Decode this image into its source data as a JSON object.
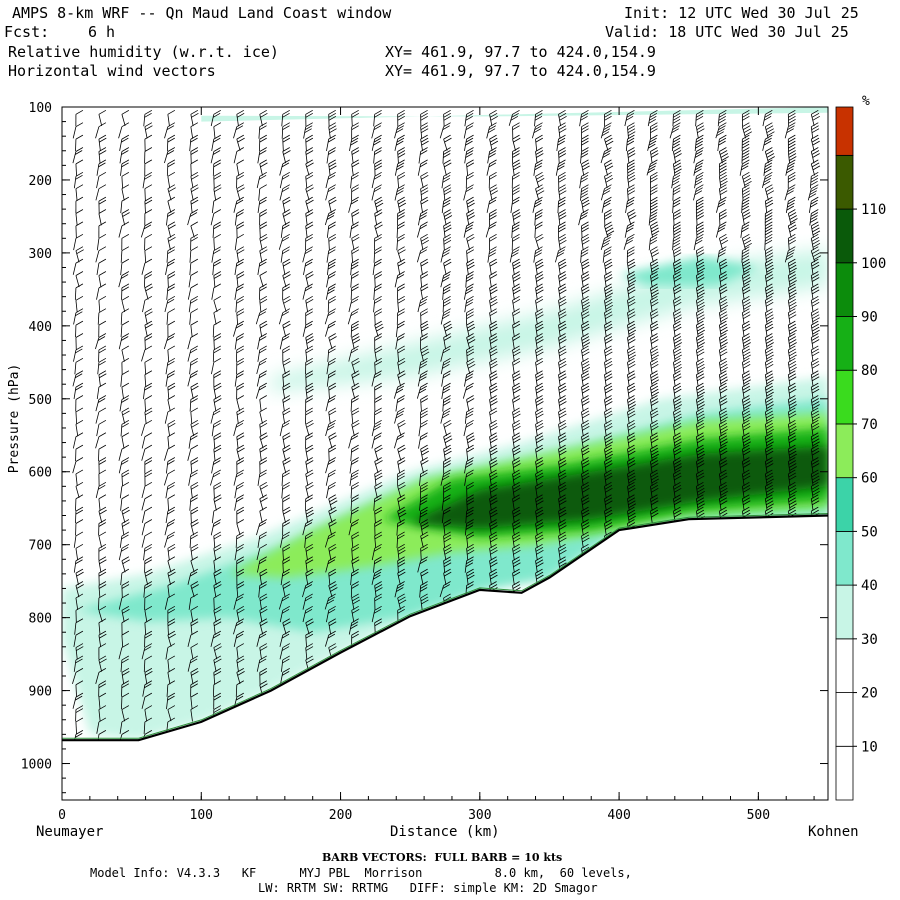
{
  "header": {
    "title": "AMPS 8-km WRF -- Qn Maud Land Coast window",
    "fcst_label": "Fcst:",
    "fcst_value": "6 h",
    "init": "Init: 12 UTC Wed 30 Jul 25",
    "valid": "Valid: 18 UTC Wed 30 Jul 25",
    "field1": "Relative humidity (w.r.t. ice)",
    "field2": "Horizontal wind vectors",
    "xy1": "XY= 461.9, 97.7 to 424.0,154.9",
    "xy2": "XY= 461.9, 97.7 to 424.0,154.9"
  },
  "footer": {
    "barb": "BARB VECTORS:  FULL BARB = 10 kts",
    "model1": "Model Info: V4.3.3   KF      MYJ PBL  Morrison          8.0 km,  60 levels,",
    "model2": "LW: RRTM SW: RRTMG   DIFF: simple KM: 2D Smagor"
  },
  "chart_data": {
    "type": "heatmap",
    "title": "Relative humidity (w.r.t. ice)",
    "xlabel": "Distance (km)",
    "ylabel": "Pressure (hPa)",
    "x_start_label": "Neumayer",
    "x_end_label": "Kohnen",
    "xlim": [
      0,
      550
    ],
    "ylim": [
      1050,
      100
    ],
    "x_ticks": [
      0,
      100,
      200,
      300,
      400,
      500
    ],
    "y_ticks": [
      100,
      200,
      300,
      400,
      500,
      600,
      700,
      800,
      900,
      1000
    ],
    "colorbar": {
      "unit": "%",
      "levels": [
        10,
        20,
        30,
        40,
        50,
        60,
        70,
        80,
        90,
        100,
        110
      ],
      "colors": [
        "#ffffff",
        "#ffffff",
        "#ffffff",
        "#c8f5e6",
        "#7fe8cc",
        "#3cd3a8",
        "#8cec5a",
        "#3adb1e",
        "#16b016",
        "#0c8c0c",
        "#0a5a0a",
        "#3b5a00",
        "#c83200"
      ]
    },
    "terrain_surface": [
      [
        0,
        968
      ],
      [
        55,
        968
      ],
      [
        100,
        943
      ],
      [
        150,
        900
      ],
      [
        200,
        848
      ],
      [
        250,
        798
      ],
      [
        300,
        762
      ],
      [
        330,
        766
      ],
      [
        350,
        745
      ],
      [
        400,
        680
      ],
      [
        450,
        665
      ],
      [
        550,
        660
      ]
    ],
    "rh_features": [
      {
        "level": 35,
        "x_range": [
          0,
          550
        ],
        "p_range": [
          350,
          500
        ],
        "desc": "upper moist band"
      },
      {
        "level": 45,
        "x_range": [
          400,
          500
        ],
        "p_range": [
          290,
          390
        ]
      },
      {
        "level": 60,
        "x_range": [
          130,
          550
        ],
        "p_range": [
          520,
          720
        ]
      },
      {
        "level": 105,
        "x_range": [
          240,
          520
        ],
        "p_range": [
          570,
          680
        ]
      }
    ],
    "wind_barbs": {
      "units": "kts",
      "full_barb": 10
    }
  }
}
